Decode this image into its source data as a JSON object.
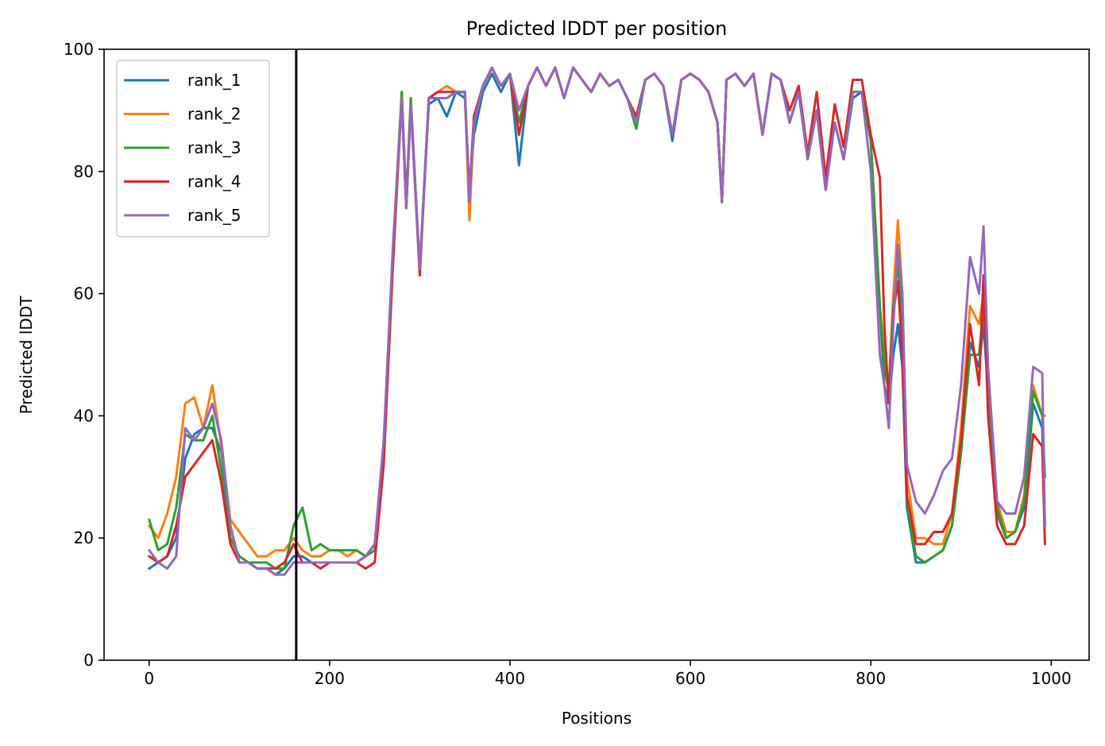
{
  "chart_data": {
    "type": "line",
    "title": "Predicted lDDT per position",
    "xlabel": "Positions",
    "ylabel": "Predicted lDDT",
    "xlim": [
      -50,
      1042
    ],
    "ylim": [
      0,
      100
    ],
    "xticks": [
      0,
      200,
      400,
      600,
      800,
      1000
    ],
    "yticks": [
      0,
      20,
      40,
      60,
      80,
      100
    ],
    "grid": false,
    "legend_position": "upper-left",
    "vline": {
      "x": 163,
      "color": "#000000"
    },
    "x": [
      0,
      10,
      20,
      30,
      40,
      50,
      60,
      70,
      80,
      90,
      100,
      110,
      120,
      130,
      140,
      150,
      160,
      170,
      180,
      190,
      200,
      210,
      220,
      230,
      240,
      250,
      260,
      270,
      280,
      285,
      290,
      300,
      310,
      320,
      330,
      340,
      350,
      355,
      360,
      370,
      380,
      390,
      400,
      410,
      420,
      430,
      440,
      450,
      460,
      470,
      480,
      490,
      500,
      510,
      520,
      530,
      540,
      550,
      560,
      570,
      580,
      590,
      600,
      610,
      620,
      630,
      635,
      640,
      650,
      660,
      670,
      680,
      690,
      700,
      710,
      720,
      730,
      740,
      750,
      760,
      770,
      780,
      790,
      800,
      810,
      815,
      820,
      825,
      830,
      835,
      840,
      850,
      860,
      870,
      880,
      890,
      900,
      910,
      920,
      925,
      930,
      940,
      950,
      960,
      970,
      980,
      990,
      993
    ],
    "series": [
      {
        "name": "rank_1",
        "color": "#1f77b4",
        "values": [
          15,
          16,
          17,
          20,
          33,
          37,
          38,
          38,
          34,
          22,
          16,
          16,
          15,
          15,
          14,
          15,
          17,
          17,
          16,
          16,
          16,
          16,
          16,
          16,
          17,
          19,
          35,
          66,
          92,
          74,
          91,
          64,
          91,
          92,
          89,
          93,
          92,
          76,
          86,
          93,
          96,
          93,
          96,
          81,
          94,
          97,
          94,
          97,
          92,
          97,
          95,
          93,
          96,
          94,
          95,
          92,
          88,
          95,
          96,
          94,
          85,
          95,
          96,
          95,
          93,
          88,
          75,
          95,
          96,
          94,
          96,
          86,
          96,
          95,
          88,
          93,
          82,
          90,
          77,
          88,
          82,
          92,
          93,
          85,
          58,
          45,
          42,
          50,
          55,
          48,
          25,
          16,
          16,
          17,
          18,
          22,
          34,
          52,
          48,
          55,
          44,
          24,
          20,
          21,
          25,
          42,
          38,
          22
        ]
      },
      {
        "name": "rank_2",
        "color": "#ff7f0e",
        "values": [
          22,
          20,
          24,
          30,
          42,
          43,
          38,
          45,
          35,
          23,
          21,
          19,
          17,
          17,
          18,
          18,
          20,
          18,
          17,
          17,
          18,
          18,
          17,
          18,
          17,
          19,
          35,
          67,
          93,
          75,
          92,
          63,
          92,
          93,
          94,
          93,
          93,
          72,
          88,
          94,
          97,
          94,
          96,
          86,
          94,
          97,
          94,
          97,
          92,
          97,
          95,
          93,
          96,
          94,
          95,
          92,
          89,
          95,
          96,
          94,
          86,
          95,
          96,
          95,
          93,
          88,
          75,
          95,
          96,
          94,
          96,
          86,
          96,
          95,
          88,
          93,
          82,
          90,
          77,
          88,
          82,
          93,
          93,
          85,
          58,
          50,
          45,
          60,
          72,
          60,
          30,
          20,
          20,
          19,
          19,
          24,
          38,
          58,
          55,
          60,
          45,
          26,
          21,
          21,
          27,
          45,
          40,
          40
        ]
      },
      {
        "name": "rank_3",
        "color": "#2ca02c",
        "values": [
          23,
          18,
          19,
          25,
          37,
          36,
          36,
          40,
          31,
          20,
          17,
          16,
          16,
          16,
          15,
          15,
          22,
          25,
          18,
          19,
          18,
          18,
          18,
          18,
          17,
          18,
          33,
          66,
          93,
          75,
          92,
          64,
          92,
          92,
          92,
          93,
          93,
          76,
          89,
          94,
          97,
          94,
          96,
          88,
          94,
          97,
          94,
          97,
          92,
          97,
          95,
          93,
          96,
          94,
          95,
          92,
          87,
          95,
          96,
          94,
          86,
          95,
          96,
          95,
          93,
          88,
          75,
          95,
          96,
          94,
          96,
          86,
          96,
          95,
          88,
          93,
          82,
          90,
          77,
          88,
          82,
          93,
          93,
          85,
          58,
          48,
          44,
          58,
          65,
          55,
          26,
          17,
          16,
          17,
          18,
          22,
          34,
          50,
          50,
          58,
          45,
          25,
          20,
          21,
          26,
          44,
          40,
          30
        ]
      },
      {
        "name": "rank_4",
        "color": "#d62728",
        "values": [
          17,
          16,
          17,
          22,
          30,
          32,
          34,
          36,
          29,
          19,
          16,
          16,
          15,
          15,
          15,
          16,
          19,
          16,
          16,
          15,
          16,
          16,
          16,
          16,
          15,
          16,
          32,
          64,
          92,
          74,
          91,
          63,
          92,
          93,
          93,
          93,
          93,
          76,
          89,
          94,
          97,
          94,
          96,
          86,
          94,
          97,
          94,
          97,
          92,
          97,
          95,
          93,
          96,
          94,
          95,
          92,
          89,
          95,
          96,
          94,
          86,
          95,
          96,
          95,
          93,
          88,
          75,
          95,
          96,
          94,
          96,
          86,
          96,
          95,
          90,
          94,
          83,
          93,
          79,
          91,
          84,
          95,
          95,
          86,
          79,
          55,
          42,
          57,
          62,
          50,
          27,
          19,
          19,
          21,
          21,
          24,
          36,
          55,
          45,
          63,
          40,
          22,
          19,
          19,
          22,
          37,
          35,
          19
        ]
      },
      {
        "name": "rank_5",
        "color": "#9467bd",
        "values": [
          18,
          16,
          15,
          17,
          38,
          36,
          38,
          42,
          36,
          22,
          16,
          16,
          15,
          15,
          14,
          14,
          16,
          16,
          16,
          16,
          16,
          16,
          16,
          16,
          17,
          19,
          36,
          67,
          92,
          74,
          91,
          64,
          92,
          92,
          92,
          93,
          93,
          75,
          88,
          94,
          97,
          94,
          96,
          90,
          94,
          97,
          94,
          97,
          92,
          97,
          95,
          93,
          96,
          94,
          95,
          92,
          88,
          95,
          96,
          94,
          86,
          95,
          96,
          95,
          93,
          88,
          75,
          95,
          96,
          94,
          96,
          86,
          96,
          95,
          88,
          93,
          82,
          90,
          77,
          88,
          82,
          93,
          93,
          80,
          50,
          45,
          38,
          55,
          68,
          60,
          32,
          26,
          24,
          27,
          31,
          33,
          45,
          66,
          60,
          71,
          48,
          26,
          24,
          24,
          30,
          48,
          47,
          22
        ]
      }
    ]
  }
}
